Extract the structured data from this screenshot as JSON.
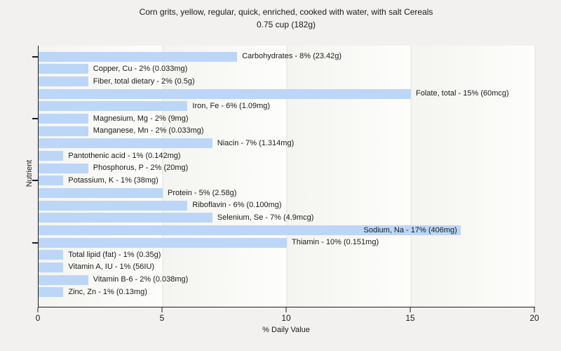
{
  "header": {
    "title_line1": "Corn grits, yellow, regular, quick, enriched, cooked with water, with salt Cereals",
    "title_line2": "0.75 cup (182g)"
  },
  "chart_data": {
    "type": "bar",
    "orientation": "horizontal",
    "title": "Corn grits, yellow, regular, quick, enriched, cooked with water, with salt Cereals",
    "subtitle": "0.75 cup (182g)",
    "xlabel": "% Daily Value",
    "ylabel": "Nutrient",
    "xlim": [
      0,
      20
    ],
    "x_ticks": [
      0,
      5,
      10,
      15,
      20
    ],
    "x_tick_labels": [
      "0",
      "5",
      "10",
      "15",
      "20"
    ],
    "gridlines_at": [
      5,
      10,
      15,
      20
    ],
    "y_tick_every_n_rows": 5,
    "legend": "none",
    "bar_color": "#bcd6f8",
    "categories": [
      "Carbohydrates",
      "Copper, Cu",
      "Fiber, total dietary",
      "Folate, total",
      "Iron, Fe",
      "Magnesium, Mg",
      "Manganese, Mn",
      "Niacin",
      "Pantothenic acid",
      "Phosphorus, P",
      "Potassium, K",
      "Protein",
      "Riboflavin",
      "Selenium, Se",
      "Sodium, Na",
      "Thiamin",
      "Total lipid (fat)",
      "Vitamin A, IU",
      "Vitamin B-6",
      "Zinc, Zn"
    ],
    "values": [
      8,
      2,
      2,
      15,
      6,
      2,
      2,
      7,
      1,
      2,
      1,
      5,
      6,
      7,
      17,
      10,
      1,
      1,
      2,
      1
    ],
    "amounts": [
      "23.42g",
      "0.033mg",
      "0.5g",
      "60mcg",
      "1.09mg",
      "9mg",
      "0.033mg",
      "1.314mg",
      "0.142mg",
      "20mg",
      "38mg",
      "2.58g",
      "0.100mg",
      "4.9mcg",
      "406mg",
      "0.151mg",
      "0.35g",
      "56IU",
      "0.038mg",
      "0.13mg"
    ],
    "labels": [
      "Carbohydrates - 8% (23.42g)",
      "Copper, Cu - 2% (0.033mg)",
      "Fiber, total dietary - 2% (0.5g)",
      "Folate, total - 15% (60mcg)",
      "Iron, Fe - 6% (1.09mg)",
      "Magnesium, Mg - 2% (9mg)",
      "Manganese, Mn - 2% (0.033mg)",
      "Niacin - 7% (1.314mg)",
      "Pantothenic acid - 1% (0.142mg)",
      "Phosphorus, P - 2% (20mg)",
      "Potassium, K - 1% (38mg)",
      "Protein - 5% (2.58g)",
      "Riboflavin - 6% (0.100mg)",
      "Selenium, Se - 7% (4.9mcg)",
      "Sodium, Na - 17% (406mg)",
      "Thiamin - 10% (0.151mg)",
      "Total lipid (fat) - 1% (0.35g)",
      "Vitamin A, IU - 1% (56IU)",
      "Vitamin B-6 - 2% (0.038mg)",
      "Zinc, Zn - 1% (0.13mg)"
    ]
  }
}
